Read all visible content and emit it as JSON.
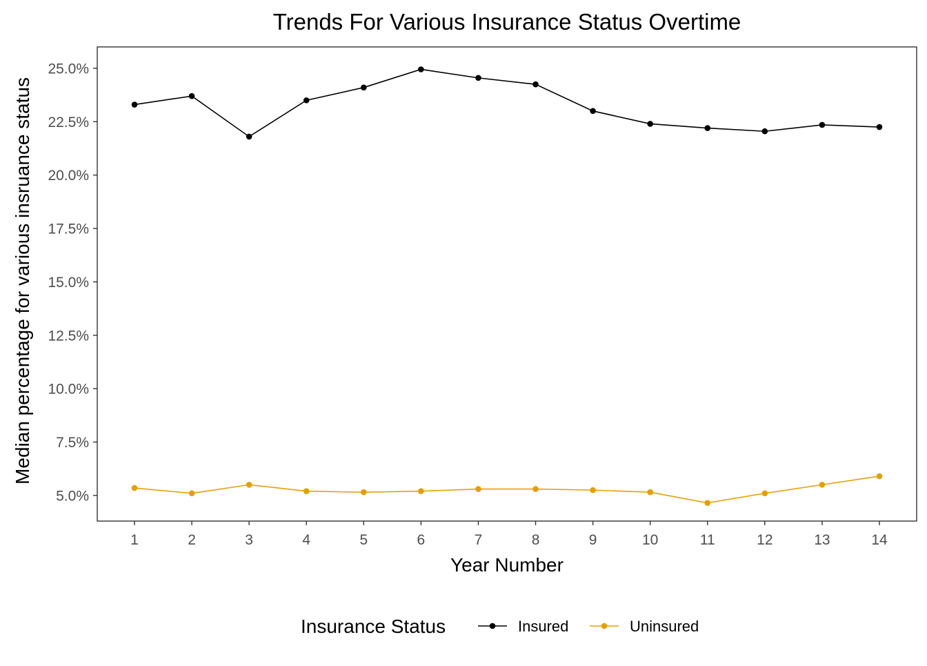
{
  "chart_data": {
    "type": "line",
    "title": "Trends For Various Insurance Status Overtime",
    "xlabel": "Year Number",
    "ylabel": "Median percentage for various insruance status",
    "x": [
      1,
      2,
      3,
      4,
      5,
      6,
      7,
      8,
      9,
      10,
      11,
      12,
      13,
      14
    ],
    "x_tick_labels": [
      "1",
      "2",
      "3",
      "4",
      "5",
      "6",
      "7",
      "8",
      "9",
      "10",
      "11",
      "12",
      "13",
      "14"
    ],
    "y_ticks": [
      5.0,
      7.5,
      10.0,
      12.5,
      15.0,
      17.5,
      20.0,
      22.5,
      25.0
    ],
    "y_tick_labels": [
      "5.0%",
      "7.5%",
      "10.0%",
      "12.5%",
      "15.0%",
      "17.5%",
      "20.0%",
      "22.5%",
      "25.0%"
    ],
    "xlim": [
      0.35,
      14.65
    ],
    "ylim": [
      3.8,
      26.0
    ],
    "grid": false,
    "legend_position": "bottom",
    "legend_title": "Insurance Status",
    "series": [
      {
        "name": "Insured",
        "color": "#000000",
        "values": [
          23.3,
          23.7,
          21.8,
          23.5,
          24.1,
          24.95,
          24.55,
          24.25,
          23.0,
          22.4,
          22.2,
          22.05,
          22.35,
          22.25
        ]
      },
      {
        "name": "Uninsured",
        "color": "#E69F00",
        "values": [
          5.35,
          5.1,
          5.5,
          5.2,
          5.15,
          5.2,
          5.3,
          5.3,
          5.25,
          5.15,
          4.65,
          5.1,
          5.5,
          5.9
        ]
      }
    ]
  }
}
